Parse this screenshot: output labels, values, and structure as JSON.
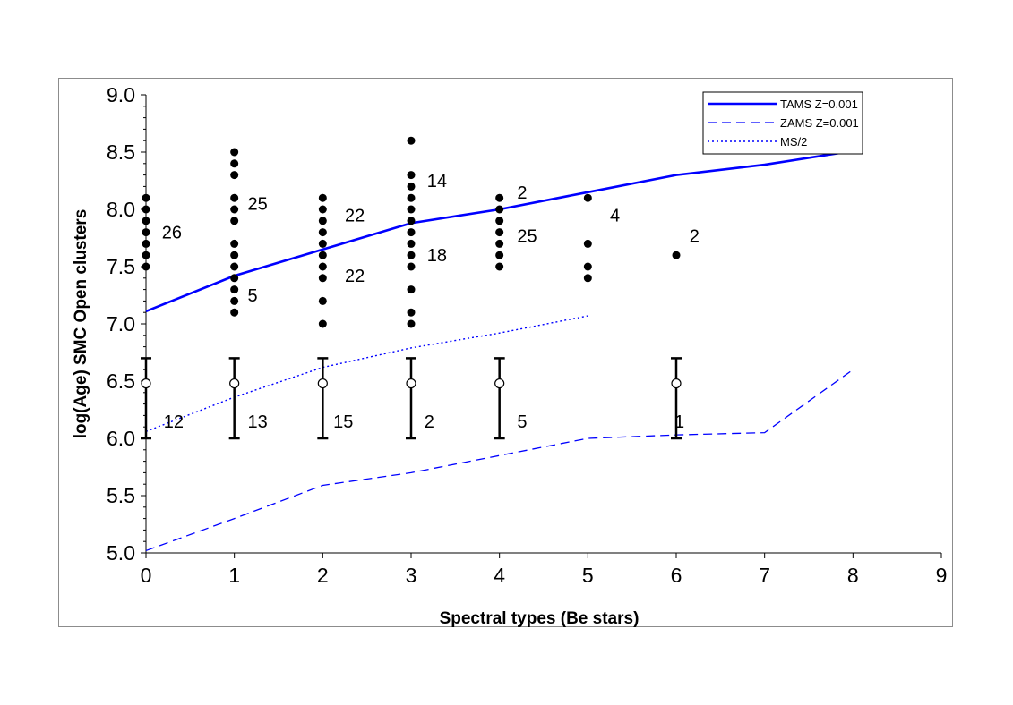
{
  "chart_data": {
    "type": "scatter",
    "title": "",
    "xlabel": "Spectral types (Be stars)",
    "ylabel": "log(Age) SMC Open clusters",
    "xlim": [
      0,
      9
    ],
    "ylim": [
      5.0,
      9.0
    ],
    "x_ticks": [
      "0",
      "1",
      "2",
      "3",
      "4",
      "5",
      "6",
      "7",
      "8",
      "9"
    ],
    "y_ticks": [
      "5.0",
      "5.5",
      "6.0",
      "6.5",
      "7.0",
      "7.5",
      "8.0",
      "8.5",
      "9.0"
    ],
    "grid": false,
    "legend_position": "top-right",
    "series": [
      {
        "name": "TAMS Z=0.001",
        "style": "solid",
        "color": "#0000ff",
        "x": [
          0,
          1,
          2,
          3,
          4,
          5,
          6,
          7,
          8
        ],
        "y": [
          7.11,
          7.42,
          7.65,
          7.88,
          8.0,
          8.15,
          8.3,
          8.39,
          8.51
        ]
      },
      {
        "name": "ZAMS Z=0.001",
        "style": "dashed",
        "color": "#0000ff",
        "x": [
          0,
          1,
          2,
          3,
          4,
          5,
          6,
          7,
          8
        ],
        "y": [
          5.02,
          5.3,
          5.59,
          5.7,
          5.85,
          6.0,
          6.03,
          6.05,
          6.6
        ]
      },
      {
        "name": "MS/2",
        "style": "dotted",
        "color": "#0000ff",
        "x": [
          0,
          1,
          2,
          3,
          4,
          5
        ],
        "y": [
          6.06,
          6.36,
          6.62,
          6.79,
          6.92,
          7.07
        ]
      }
    ],
    "cluster_points": [
      {
        "x": 0,
        "y": [
          7.5,
          7.6,
          7.7,
          7.8,
          7.9,
          8.0,
          8.1
        ]
      },
      {
        "x": 1,
        "y": [
          7.1,
          7.2,
          7.3,
          7.4,
          7.5,
          7.6,
          7.7,
          7.9,
          8.0,
          8.1,
          8.3,
          8.4,
          8.5
        ]
      },
      {
        "x": 2,
        "y": [
          7.0,
          7.2,
          7.4,
          7.5,
          7.6,
          7.7,
          7.8,
          7.9,
          8.0,
          8.1
        ]
      },
      {
        "x": 3,
        "y": [
          7.0,
          7.1,
          7.3,
          7.5,
          7.6,
          7.7,
          7.8,
          7.9,
          8.0,
          8.1,
          8.2,
          8.3,
          8.6
        ]
      },
      {
        "x": 4,
        "y": [
          7.5,
          7.6,
          7.7,
          7.8,
          7.9,
          8.0,
          8.1
        ]
      },
      {
        "x": 5,
        "y": [
          7.4,
          7.5,
          7.7,
          8.1
        ]
      },
      {
        "x": 6,
        "y": [
          7.6
        ]
      }
    ],
    "field_points": [
      {
        "x": 0,
        "y": 6.48,
        "low": 6.0,
        "high": 6.7
      },
      {
        "x": 1,
        "y": 6.48,
        "low": 6.0,
        "high": 6.7
      },
      {
        "x": 2,
        "y": 6.48,
        "low": 6.0,
        "high": 6.7
      },
      {
        "x": 3,
        "y": 6.48,
        "low": 6.0,
        "high": 6.7
      },
      {
        "x": 4,
        "y": 6.48,
        "low": 6.0,
        "high": 6.7
      },
      {
        "x": 6,
        "y": 6.48,
        "low": 6.0,
        "high": 6.7
      }
    ],
    "annotations": [
      {
        "text": "26",
        "x": 0.18,
        "y": 7.8
      },
      {
        "text": "25",
        "x": 1.15,
        "y": 8.05
      },
      {
        "text": "5",
        "x": 1.15,
        "y": 7.25
      },
      {
        "text": "22",
        "x": 2.25,
        "y": 7.95
      },
      {
        "text": "22",
        "x": 2.25,
        "y": 7.42
      },
      {
        "text": "14",
        "x": 3.18,
        "y": 8.25
      },
      {
        "text": "18",
        "x": 3.18,
        "y": 7.6
      },
      {
        "text": "2",
        "x": 4.2,
        "y": 8.15
      },
      {
        "text": "25",
        "x": 4.2,
        "y": 7.77
      },
      {
        "text": "4",
        "x": 5.25,
        "y": 7.95
      },
      {
        "text": "2",
        "x": 6.15,
        "y": 7.77
      },
      {
        "text": "12",
        "x": 0.2,
        "y": 6.15
      },
      {
        "text": "13",
        "x": 1.15,
        "y": 6.15
      },
      {
        "text": "15",
        "x": 2.12,
        "y": 6.15
      },
      {
        "text": "2",
        "x": 3.15,
        "y": 6.15
      },
      {
        "text": "5",
        "x": 4.2,
        "y": 6.15
      },
      {
        "text": "1",
        "x": 5.98,
        "y": 6.15
      }
    ]
  }
}
